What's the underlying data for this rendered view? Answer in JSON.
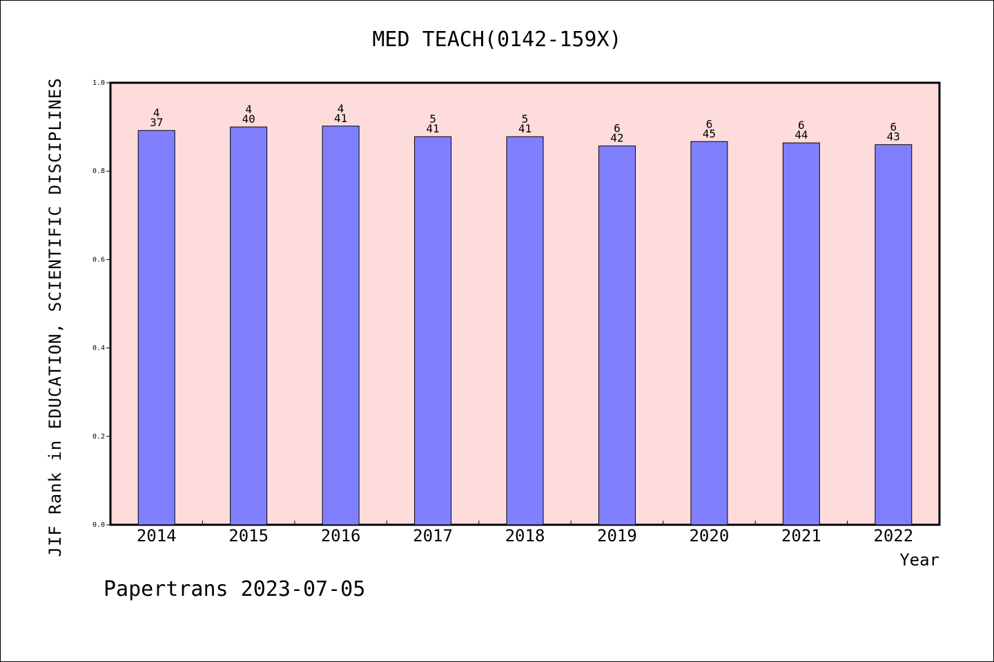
{
  "chart_data": {
    "type": "bar",
    "title": "MED TEACH(0142-159X)",
    "xlabel": "Year",
    "ylabel": "JIF Rank in EDUCATION, SCIENTIFIC DISCIPLINES",
    "categories": [
      "2014",
      "2015",
      "2016",
      "2017",
      "2018",
      "2019",
      "2020",
      "2021",
      "2022"
    ],
    "values": [
      0.892,
      0.9,
      0.902,
      0.878,
      0.878,
      0.857,
      0.867,
      0.864,
      0.86
    ],
    "bar_labels": [
      [
        "4",
        "37"
      ],
      [
        "4",
        "40"
      ],
      [
        "4",
        "41"
      ],
      [
        "5",
        "41"
      ],
      [
        "5",
        "41"
      ],
      [
        "6",
        "42"
      ],
      [
        "6",
        "45"
      ],
      [
        "6",
        "44"
      ],
      [
        "6",
        "43"
      ]
    ],
    "ylim": [
      0,
      1.0
    ],
    "yticks": [
      "0.0",
      "0.2",
      "0.4",
      "0.6",
      "0.8",
      "1.0"
    ],
    "grid": false,
    "colors": {
      "bar": "#8080ff",
      "plot_background": "#ffdcdc",
      "axis": "#000000"
    }
  },
  "footer": "Papertrans 2023-07-05"
}
